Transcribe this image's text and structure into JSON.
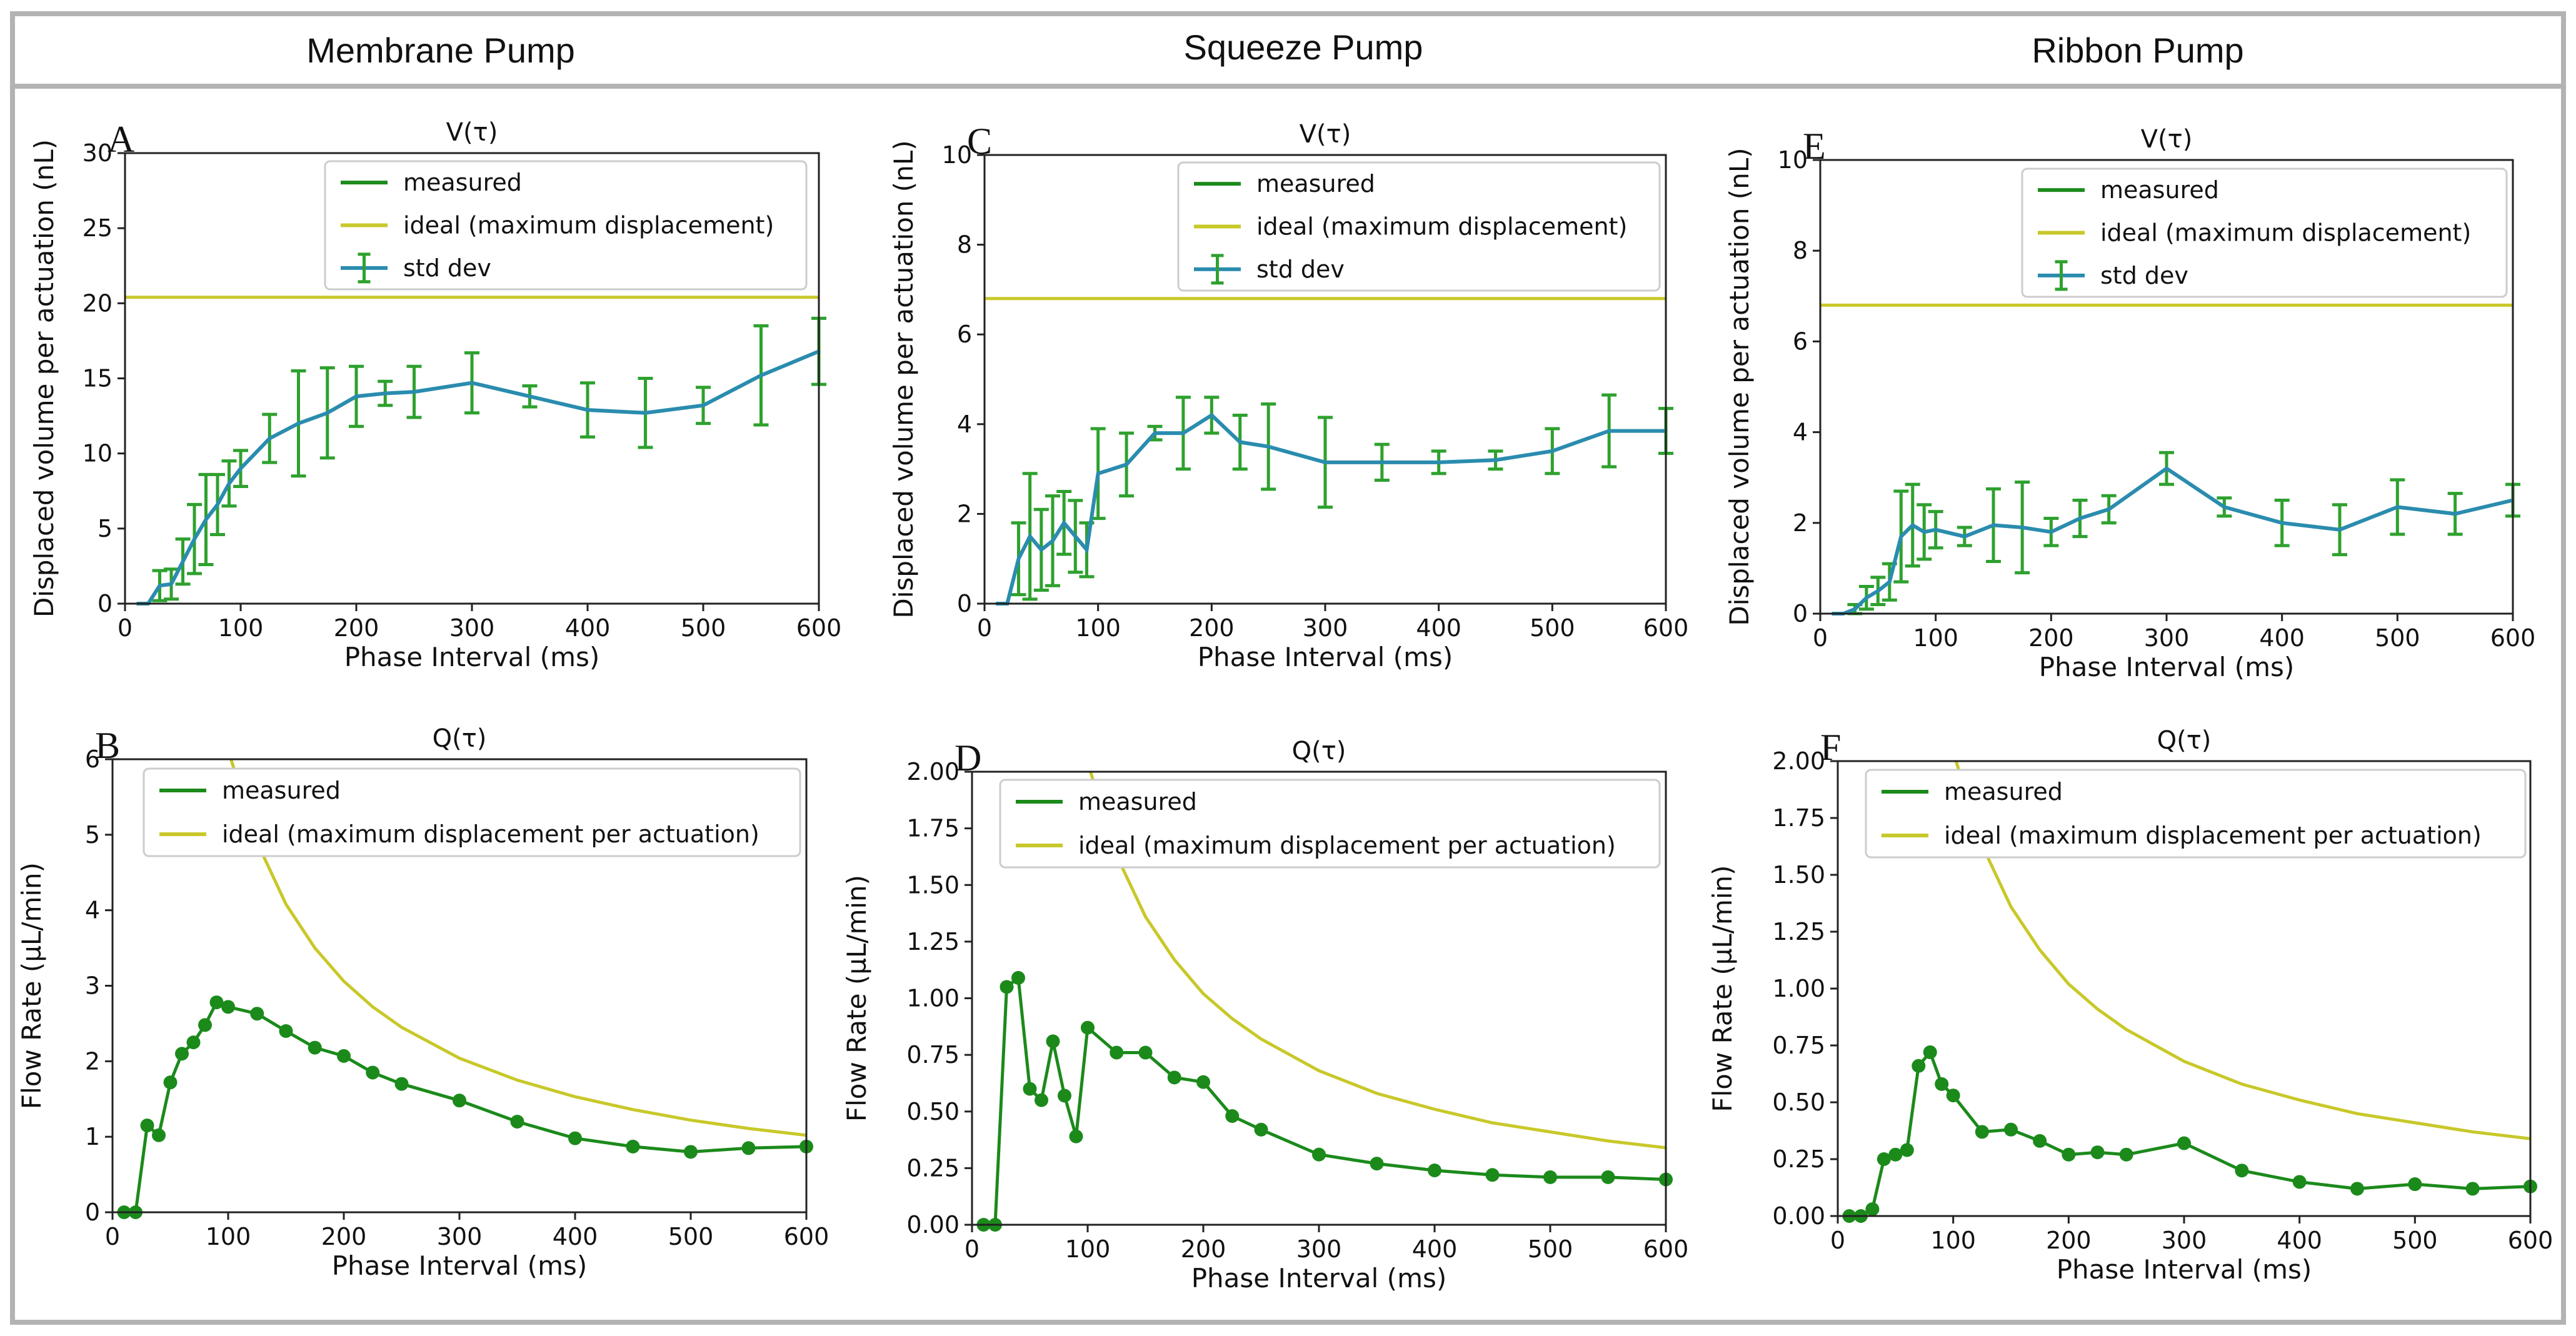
{
  "columns": [
    "Membrane Pump",
    "Squeeze Pump",
    "Ribbon Pump"
  ],
  "colors": {
    "measured": "#1b8a1b",
    "ideal": "#c8c82a",
    "std_dev_line": "#2a8cae",
    "std_dev_err": "#2ea12e",
    "frame": "#b3b3b3"
  },
  "chart_data": [
    {
      "panel": "A",
      "type": "line",
      "title": "V(τ)",
      "xlabel": "Phase Interval (ms)",
      "ylabel": "Displaced volume per actuation (nL)",
      "xlim": [
        0,
        600
      ],
      "ylim": [
        0,
        30
      ],
      "xticks": [
        "0",
        "100",
        "200",
        "300",
        "400",
        "500",
        "600"
      ],
      "yticks": [
        "0",
        "5",
        "10",
        "15",
        "20",
        "25",
        "30"
      ],
      "legend": [
        "measured",
        "ideal (maximum displacement)",
        "std dev"
      ],
      "ideal_constant": 20.4,
      "std_dev": {
        "x": [
          10,
          20,
          30,
          40,
          50,
          60,
          70,
          80,
          90,
          100,
          125,
          150,
          175,
          200,
          225,
          250,
          300,
          350,
          400,
          450,
          500,
          550,
          600
        ],
        "y": [
          0,
          0,
          1.2,
          1.3,
          2.8,
          4.3,
          5.6,
          6.6,
          8.0,
          9.0,
          11.0,
          12.0,
          12.7,
          13.8,
          14.0,
          14.1,
          14.7,
          13.8,
          12.9,
          12.7,
          13.2,
          15.2,
          16.8
        ],
        "err": [
          0,
          0,
          1.0,
          1.0,
          1.5,
          2.3,
          3.0,
          2.0,
          1.5,
          1.2,
          1.6,
          3.5,
          3.0,
          2.0,
          0.8,
          1.7,
          2.0,
          0.7,
          1.8,
          2.3,
          1.2,
          3.3,
          2.2
        ]
      }
    },
    {
      "panel": "B",
      "type": "line",
      "title": "Q(τ)",
      "xlabel": "Phase Interval (ms)",
      "ylabel": "Flow Rate (µL/min)",
      "xlim": [
        0,
        600
      ],
      "ylim": [
        0,
        6
      ],
      "xticks": [
        "0",
        "100",
        "200",
        "300",
        "400",
        "500",
        "600"
      ],
      "yticks": [
        "0",
        "1",
        "2",
        "3",
        "4",
        "5",
        "6"
      ],
      "legend": [
        "measured",
        "ideal (maximum displacement per actuation)"
      ],
      "ideal_curve": {
        "x": [
          100,
          125,
          150,
          175,
          200,
          225,
          250,
          300,
          350,
          400,
          450,
          500,
          550,
          600
        ],
        "y": [
          6.12,
          4.9,
          4.08,
          3.5,
          3.06,
          2.72,
          2.45,
          2.04,
          1.75,
          1.53,
          1.36,
          1.22,
          1.11,
          1.02
        ]
      },
      "measured": {
        "x": [
          10,
          20,
          30,
          40,
          50,
          60,
          70,
          80,
          90,
          100,
          125,
          150,
          175,
          200,
          225,
          250,
          300,
          350,
          400,
          450,
          500,
          550,
          600
        ],
        "y": [
          0,
          0,
          1.15,
          1.02,
          1.72,
          2.1,
          2.25,
          2.48,
          2.78,
          2.72,
          2.63,
          2.4,
          2.18,
          2.07,
          1.85,
          1.7,
          1.48,
          1.2,
          0.98,
          0.87,
          0.8,
          0.85,
          0.87
        ]
      }
    },
    {
      "panel": "C",
      "type": "line",
      "title": "V(τ)",
      "xlabel": "Phase Interval (ms)",
      "ylabel": "Displaced volume per actuation (nL)",
      "xlim": [
        0,
        600
      ],
      "ylim": [
        0,
        10
      ],
      "xticks": [
        "0",
        "100",
        "200",
        "300",
        "400",
        "500",
        "600"
      ],
      "yticks": [
        "0",
        "2",
        "4",
        "6",
        "8",
        "10"
      ],
      "legend": [
        "measured",
        "ideal (maximum displacement)",
        "std dev"
      ],
      "ideal_constant": 6.8,
      "std_dev": {
        "x": [
          10,
          20,
          30,
          40,
          50,
          60,
          70,
          80,
          90,
          100,
          125,
          150,
          175,
          200,
          225,
          250,
          300,
          350,
          400,
          450,
          500,
          550,
          600
        ],
        "y": [
          0,
          0,
          1.0,
          1.5,
          1.2,
          1.4,
          1.8,
          1.5,
          1.2,
          2.9,
          3.1,
          3.8,
          3.8,
          4.2,
          3.6,
          3.5,
          3.15,
          3.15,
          3.15,
          3.2,
          3.4,
          3.85,
          3.85
        ],
        "err": [
          0,
          0,
          0.8,
          1.4,
          0.9,
          1.0,
          0.7,
          0.8,
          0.6,
          1.0,
          0.7,
          0.15,
          0.8,
          0.4,
          0.6,
          0.95,
          1.0,
          0.4,
          0.25,
          0.2,
          0.5,
          0.8,
          0.5
        ]
      }
    },
    {
      "panel": "D",
      "type": "line",
      "title": "Q(τ)",
      "xlabel": "Phase Interval (ms)",
      "ylabel": "Flow Rate (µL/min)",
      "xlim": [
        0,
        600
      ],
      "ylim": [
        0,
        2
      ],
      "xticks": [
        "0",
        "100",
        "200",
        "300",
        "400",
        "500",
        "600"
      ],
      "yticks": [
        "0.00",
        "0.25",
        "0.50",
        "0.75",
        "1.00",
        "1.25",
        "1.50",
        "1.75",
        "2.00"
      ],
      "legend": [
        "measured",
        "ideal (maximum displacement per actuation)"
      ],
      "ideal_curve": {
        "x": [
          100,
          125,
          150,
          175,
          200,
          225,
          250,
          300,
          350,
          400,
          450,
          500,
          550,
          600
        ],
        "y": [
          2.04,
          1.63,
          1.36,
          1.17,
          1.02,
          0.91,
          0.82,
          0.68,
          0.58,
          0.51,
          0.45,
          0.41,
          0.37,
          0.34
        ]
      },
      "measured": {
        "x": [
          10,
          20,
          30,
          40,
          50,
          60,
          70,
          80,
          90,
          100,
          125,
          150,
          175,
          200,
          225,
          250,
          300,
          350,
          400,
          450,
          500,
          550,
          600
        ],
        "y": [
          0,
          0,
          1.05,
          1.09,
          0.6,
          0.55,
          0.81,
          0.57,
          0.39,
          0.87,
          0.76,
          0.76,
          0.65,
          0.63,
          0.48,
          0.42,
          0.31,
          0.27,
          0.24,
          0.22,
          0.21,
          0.21,
          0.2
        ]
      }
    },
    {
      "panel": "E",
      "type": "line",
      "title": "V(τ)",
      "xlabel": "Phase Interval (ms)",
      "ylabel": "Displaced volume per actuation (nL)",
      "xlim": [
        0,
        600
      ],
      "ylim": [
        0,
        10
      ],
      "xticks": [
        "0",
        "100",
        "200",
        "300",
        "400",
        "500",
        "600"
      ],
      "yticks": [
        "0",
        "2",
        "4",
        "6",
        "8",
        "10"
      ],
      "legend": [
        "measured",
        "ideal (maximum displacement)",
        "std dev"
      ],
      "ideal_constant": 6.8,
      "std_dev": {
        "x": [
          10,
          20,
          30,
          40,
          50,
          60,
          70,
          80,
          90,
          100,
          125,
          150,
          175,
          200,
          225,
          250,
          300,
          350,
          400,
          450,
          500,
          550,
          600
        ],
        "y": [
          0,
          0,
          0.1,
          0.35,
          0.5,
          0.7,
          1.7,
          1.95,
          1.8,
          1.85,
          1.7,
          1.95,
          1.9,
          1.8,
          2.1,
          2.3,
          3.2,
          2.35,
          2.0,
          1.85,
          2.35,
          2.2,
          2.5
        ],
        "err": [
          0,
          0,
          0.1,
          0.25,
          0.3,
          0.4,
          1.0,
          0.9,
          0.6,
          0.4,
          0.2,
          0.8,
          1.0,
          0.3,
          0.4,
          0.3,
          0.35,
          0.2,
          0.5,
          0.55,
          0.6,
          0.45,
          0.35
        ]
      }
    },
    {
      "panel": "F",
      "type": "line",
      "title": "Q(τ)",
      "xlabel": "Phase Interval (ms)",
      "ylabel": "Flow Rate (µL/min)",
      "xlim": [
        0,
        600
      ],
      "ylim": [
        0,
        2
      ],
      "xticks": [
        "0",
        "100",
        "200",
        "300",
        "400",
        "500",
        "600"
      ],
      "yticks": [
        "0.00",
        "0.25",
        "0.50",
        "0.75",
        "1.00",
        "1.25",
        "1.50",
        "1.75",
        "2.00"
      ],
      "legend": [
        "measured",
        "ideal (maximum displacement per actuation)"
      ],
      "ideal_curve": {
        "x": [
          100,
          125,
          150,
          175,
          200,
          225,
          250,
          300,
          350,
          400,
          450,
          500,
          550,
          600
        ],
        "y": [
          2.04,
          1.63,
          1.36,
          1.17,
          1.02,
          0.91,
          0.82,
          0.68,
          0.58,
          0.51,
          0.45,
          0.41,
          0.37,
          0.34
        ]
      },
      "measured": {
        "x": [
          10,
          20,
          30,
          40,
          50,
          60,
          70,
          80,
          90,
          100,
          125,
          150,
          175,
          200,
          225,
          250,
          300,
          350,
          400,
          450,
          500,
          550,
          600
        ],
        "y": [
          0,
          0,
          0.03,
          0.25,
          0.27,
          0.29,
          0.66,
          0.72,
          0.58,
          0.53,
          0.37,
          0.38,
          0.33,
          0.27,
          0.28,
          0.27,
          0.32,
          0.2,
          0.15,
          0.12,
          0.14,
          0.12,
          0.13
        ]
      }
    }
  ]
}
